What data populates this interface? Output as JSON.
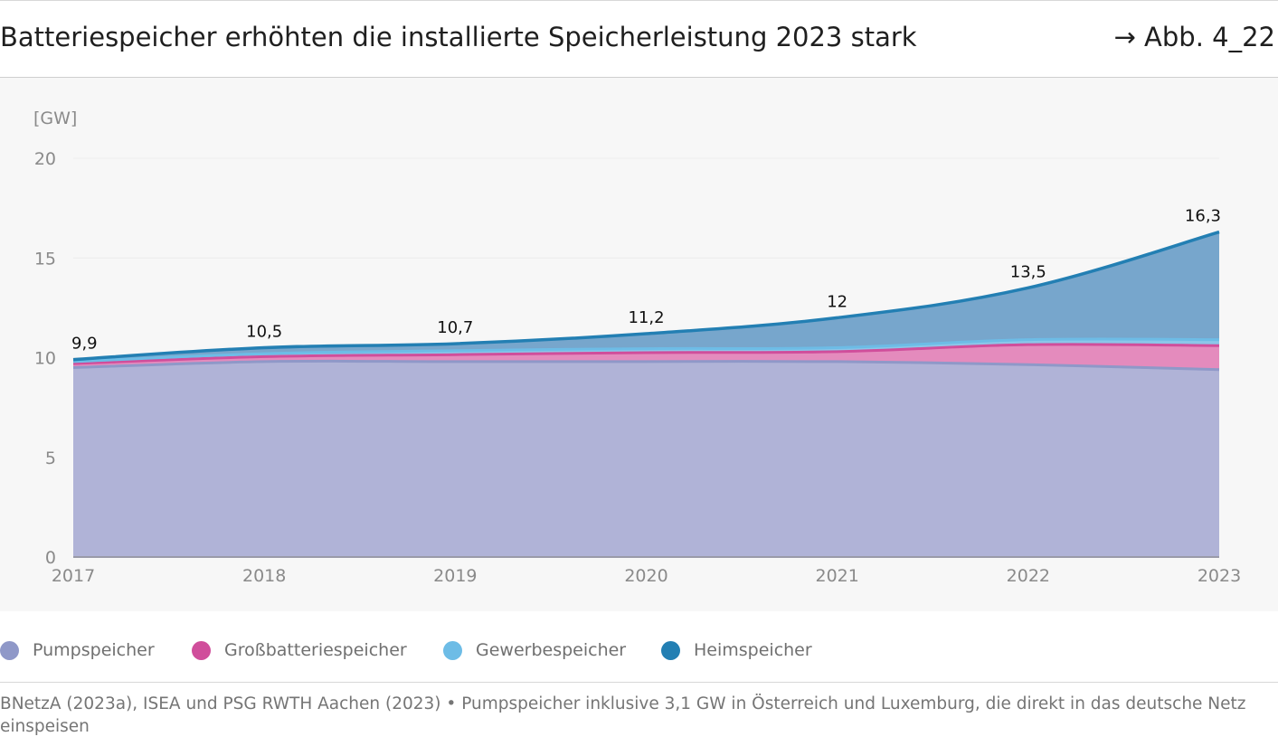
{
  "header": {
    "title": "Batteriespeicher erhöhten die installierte Speicherleistung 2023 stark",
    "figure_ref": "→ Abb. 4_22"
  },
  "chart_data": {
    "type": "area",
    "stacked": true,
    "ylabel": "[GW]",
    "xlabel": "",
    "ylim": [
      0,
      20
    ],
    "yticks": [
      0,
      5,
      10,
      15,
      20
    ],
    "x": [
      "2017",
      "2018",
      "2019",
      "2020",
      "2021",
      "2022",
      "2023"
    ],
    "series": [
      {
        "name": "Pumpspeicher",
        "color": "#8f98c8",
        "fill": "#b0b3d7",
        "values": [
          9.5,
          9.8,
          9.8,
          9.8,
          9.8,
          9.65,
          9.4
        ]
      },
      {
        "name": "Großbatteriespeicher",
        "color": "#d04e9b",
        "fill": "#e48bbd",
        "values": [
          0.2,
          0.25,
          0.35,
          0.45,
          0.5,
          1.0,
          1.2
        ]
      },
      {
        "name": "Gewerbespeicher",
        "color": "#6dbce6",
        "fill": "#8cc6e8",
        "values": [
          0.1,
          0.15,
          0.2,
          0.2,
          0.2,
          0.25,
          0.3
        ]
      },
      {
        "name": "Heimspeicher",
        "color": "#237fb3",
        "fill": "#77a6cc",
        "values": [
          0.1,
          0.3,
          0.35,
          0.75,
          1.5,
          2.6,
          5.4
        ]
      }
    ],
    "totals": [
      9.9,
      10.5,
      10.7,
      11.2,
      12,
      13.5,
      16.3
    ],
    "total_labels": [
      "9,9",
      "10,5",
      "10,7",
      "11,2",
      "12",
      "13,5",
      "16,3"
    ],
    "grid": true,
    "legend_position": "bottom"
  },
  "legend": {
    "items": [
      {
        "label": "Pumpspeicher",
        "color": "#8f98c8"
      },
      {
        "label": "Großbatteriespeicher",
        "color": "#d04e9b"
      },
      {
        "label": "Gewerbespeicher",
        "color": "#6dbce6"
      },
      {
        "label": "Heimspeicher",
        "color": "#237fb3"
      }
    ]
  },
  "footer": {
    "source": "BNetzA (2023a), ISEA und PSG RWTH Aachen (2023) • Pumpspeicher inklusive 3,1 GW in Österreich und Luxemburg, die direkt in das deutsche Netz einspeisen"
  }
}
